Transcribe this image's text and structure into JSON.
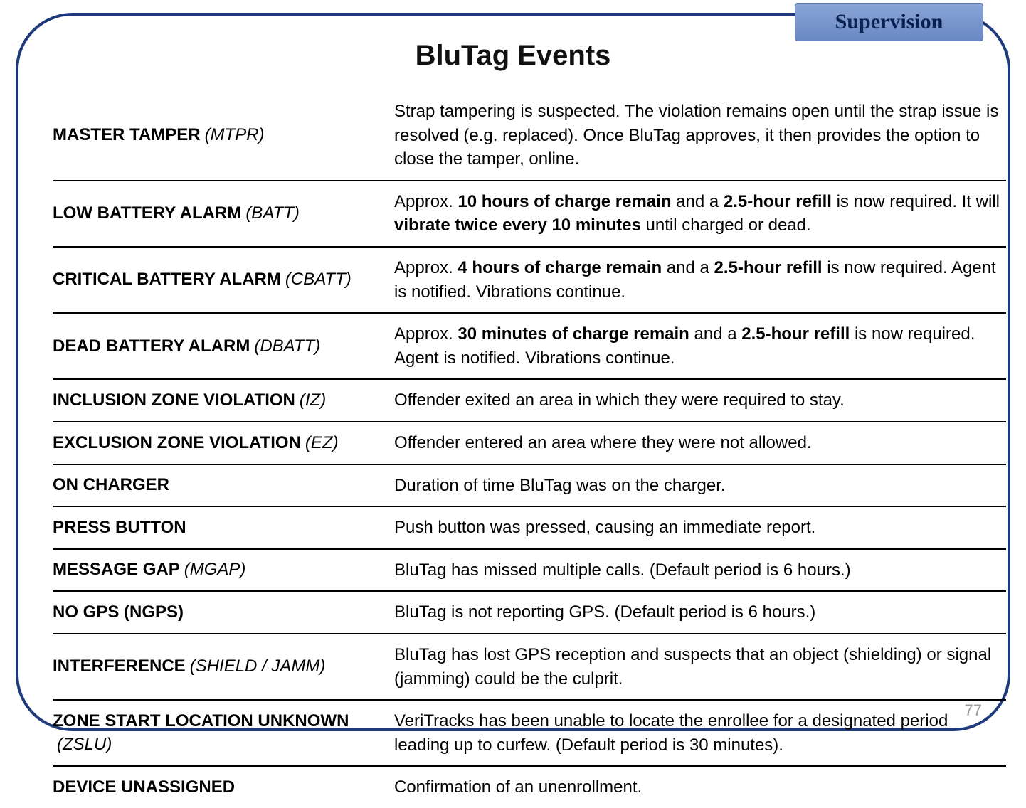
{
  "tab_label": "Supervision",
  "page_title": "BluTag Events",
  "page_number": "77",
  "colors": {
    "frame_border": "#1f3a7a",
    "tab_gradient_top": "#8aa5d6",
    "tab_gradient_bottom": "#6a88c4",
    "tab_text": "#0a2050",
    "row_divider": "#000000",
    "page_num": "#9a9a9a"
  },
  "rows": [
    {
      "name": "MASTER TAMPER",
      "code": "(MTPR)",
      "desc_html": "Strap tampering is suspected. The violation remains open until the strap issue is resolved (e.g. replaced). Once BluTag approves, it then provides the option to close the tamper, online."
    },
    {
      "name": "LOW BATTERY ALARM",
      "code": "(BATT)",
      "desc_html": "Approx. <b>10 hours of charge remain</b> and a <b>2.5-hour refill</b> is now required. It will <b>vibrate twice every 10 minutes</b> until charged or dead."
    },
    {
      "name": "CRITICAL BATTERY ALARM",
      "code": "(CBATT)",
      "desc_html": "Approx. <b>4 hours of charge remain</b> and a <b>2.5-hour refill</b> is now required. Agent is notified. Vibrations continue."
    },
    {
      "name": "DEAD BATTERY ALARM",
      "code": "(DBATT)",
      "desc_html": "Approx. <b>30 minutes of charge remain</b> and a <b>2.5-hour refill</b> is now required. Agent is notified. Vibrations continue."
    },
    {
      "name": "INCLUSION ZONE VIOLATION",
      "code": "(IZ)",
      "desc_html": "Offender exited an area in which they were required to stay."
    },
    {
      "name": "EXCLUSION ZONE VIOLATION",
      "code": "(EZ)",
      "desc_html": "Offender entered an area where they were not allowed."
    },
    {
      "name": "ON CHARGER",
      "code": "",
      "desc_html": "Duration of time BluTag was on the charger."
    },
    {
      "name": "PRESS BUTTON",
      "code": "",
      "desc_html": "Push button was pressed, causing an immediate report."
    },
    {
      "name": "MESSAGE GAP",
      "code": "(MGAP)",
      "desc_html": "BluTag has missed multiple calls. (Default period is 6 hours.)"
    },
    {
      "name": "NO GPS (NGPS)",
      "code": "",
      "desc_html": "BluTag is not reporting GPS. (Default period is 6 hours.)"
    },
    {
      "name": "INTERFERENCE",
      "code": "(SHIELD / JAMM)",
      "desc_html": "BluTag has lost GPS reception and suspects that an object (shielding) or signal (jamming) could be the culprit."
    },
    {
      "name": "ZONE START LOCATION UNKNOWN",
      "code": "(ZSLU)",
      "desc_html": "VeriTracks has been unable to locate the enrollee for a designated period leading up to curfew. (Default period is 30 minutes)."
    },
    {
      "name": "DEVICE UNASSIGNED",
      "code": "",
      "desc_html": "Confirmation of an unenrollment."
    }
  ]
}
